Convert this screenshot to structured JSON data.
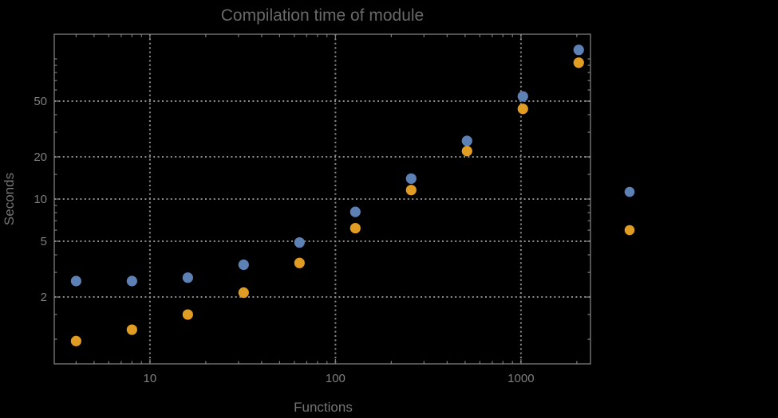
{
  "colors": {
    "background": "#000000",
    "frame": "#7f7f7f",
    "grid": "#8a8a8a",
    "tick_label": "#7f7f7f",
    "axis_label": "#757575",
    "title": "#686868",
    "series1": "#5E81B5",
    "series2": "#E19C24"
  },
  "chart_data": {
    "type": "scatter",
    "title": "Compilation time of module",
    "xlabel": "Functions",
    "ylabel": "Seconds",
    "xscale": "log",
    "yscale": "log",
    "xlim": [
      3.05,
      2370
    ],
    "ylim": [
      0.667,
      150
    ],
    "x_major_ticks": [
      10,
      100,
      1000
    ],
    "x_tick_labels": [
      "10",
      "100",
      "1000"
    ],
    "x_minor_ticks": [
      4,
      5,
      6,
      7,
      8,
      9,
      20,
      30,
      40,
      50,
      60,
      70,
      80,
      90,
      200,
      300,
      400,
      500,
      600,
      700,
      800,
      900,
      2000
    ],
    "y_major_ticks": [
      2,
      5,
      10,
      20,
      50
    ],
    "y_tick_labels": [
      "2",
      "5",
      "10",
      "20",
      "50"
    ],
    "y_minor_ticks": [
      1,
      1.5,
      3,
      4,
      6,
      7,
      8,
      9,
      15,
      30,
      40,
      60,
      70,
      80,
      90,
      100
    ],
    "grid": {
      "show": true,
      "style": "dotted",
      "at": "major-ticks"
    },
    "legend": {
      "position": "right-outside",
      "labels_visible": false,
      "items": [
        {
          "series": "blue"
        },
        {
          "series": "orange"
        }
      ]
    },
    "series": [
      {
        "name": "blue",
        "color": "#5E81B5",
        "marker": "circle",
        "x": [
          4,
          8,
          16,
          32,
          64,
          128,
          256,
          512,
          1024,
          2048
        ],
        "y": [
          2.6,
          2.6,
          2.75,
          3.4,
          4.9,
          8.1,
          14,
          26,
          54,
          116
        ]
      },
      {
        "name": "orange",
        "color": "#E19C24",
        "marker": "circle",
        "x": [
          4,
          8,
          16,
          32,
          64,
          128,
          256,
          512,
          1024,
          2048
        ],
        "y": [
          0.97,
          1.17,
          1.5,
          2.15,
          3.5,
          6.2,
          11.6,
          22,
          44,
          94
        ]
      }
    ]
  }
}
